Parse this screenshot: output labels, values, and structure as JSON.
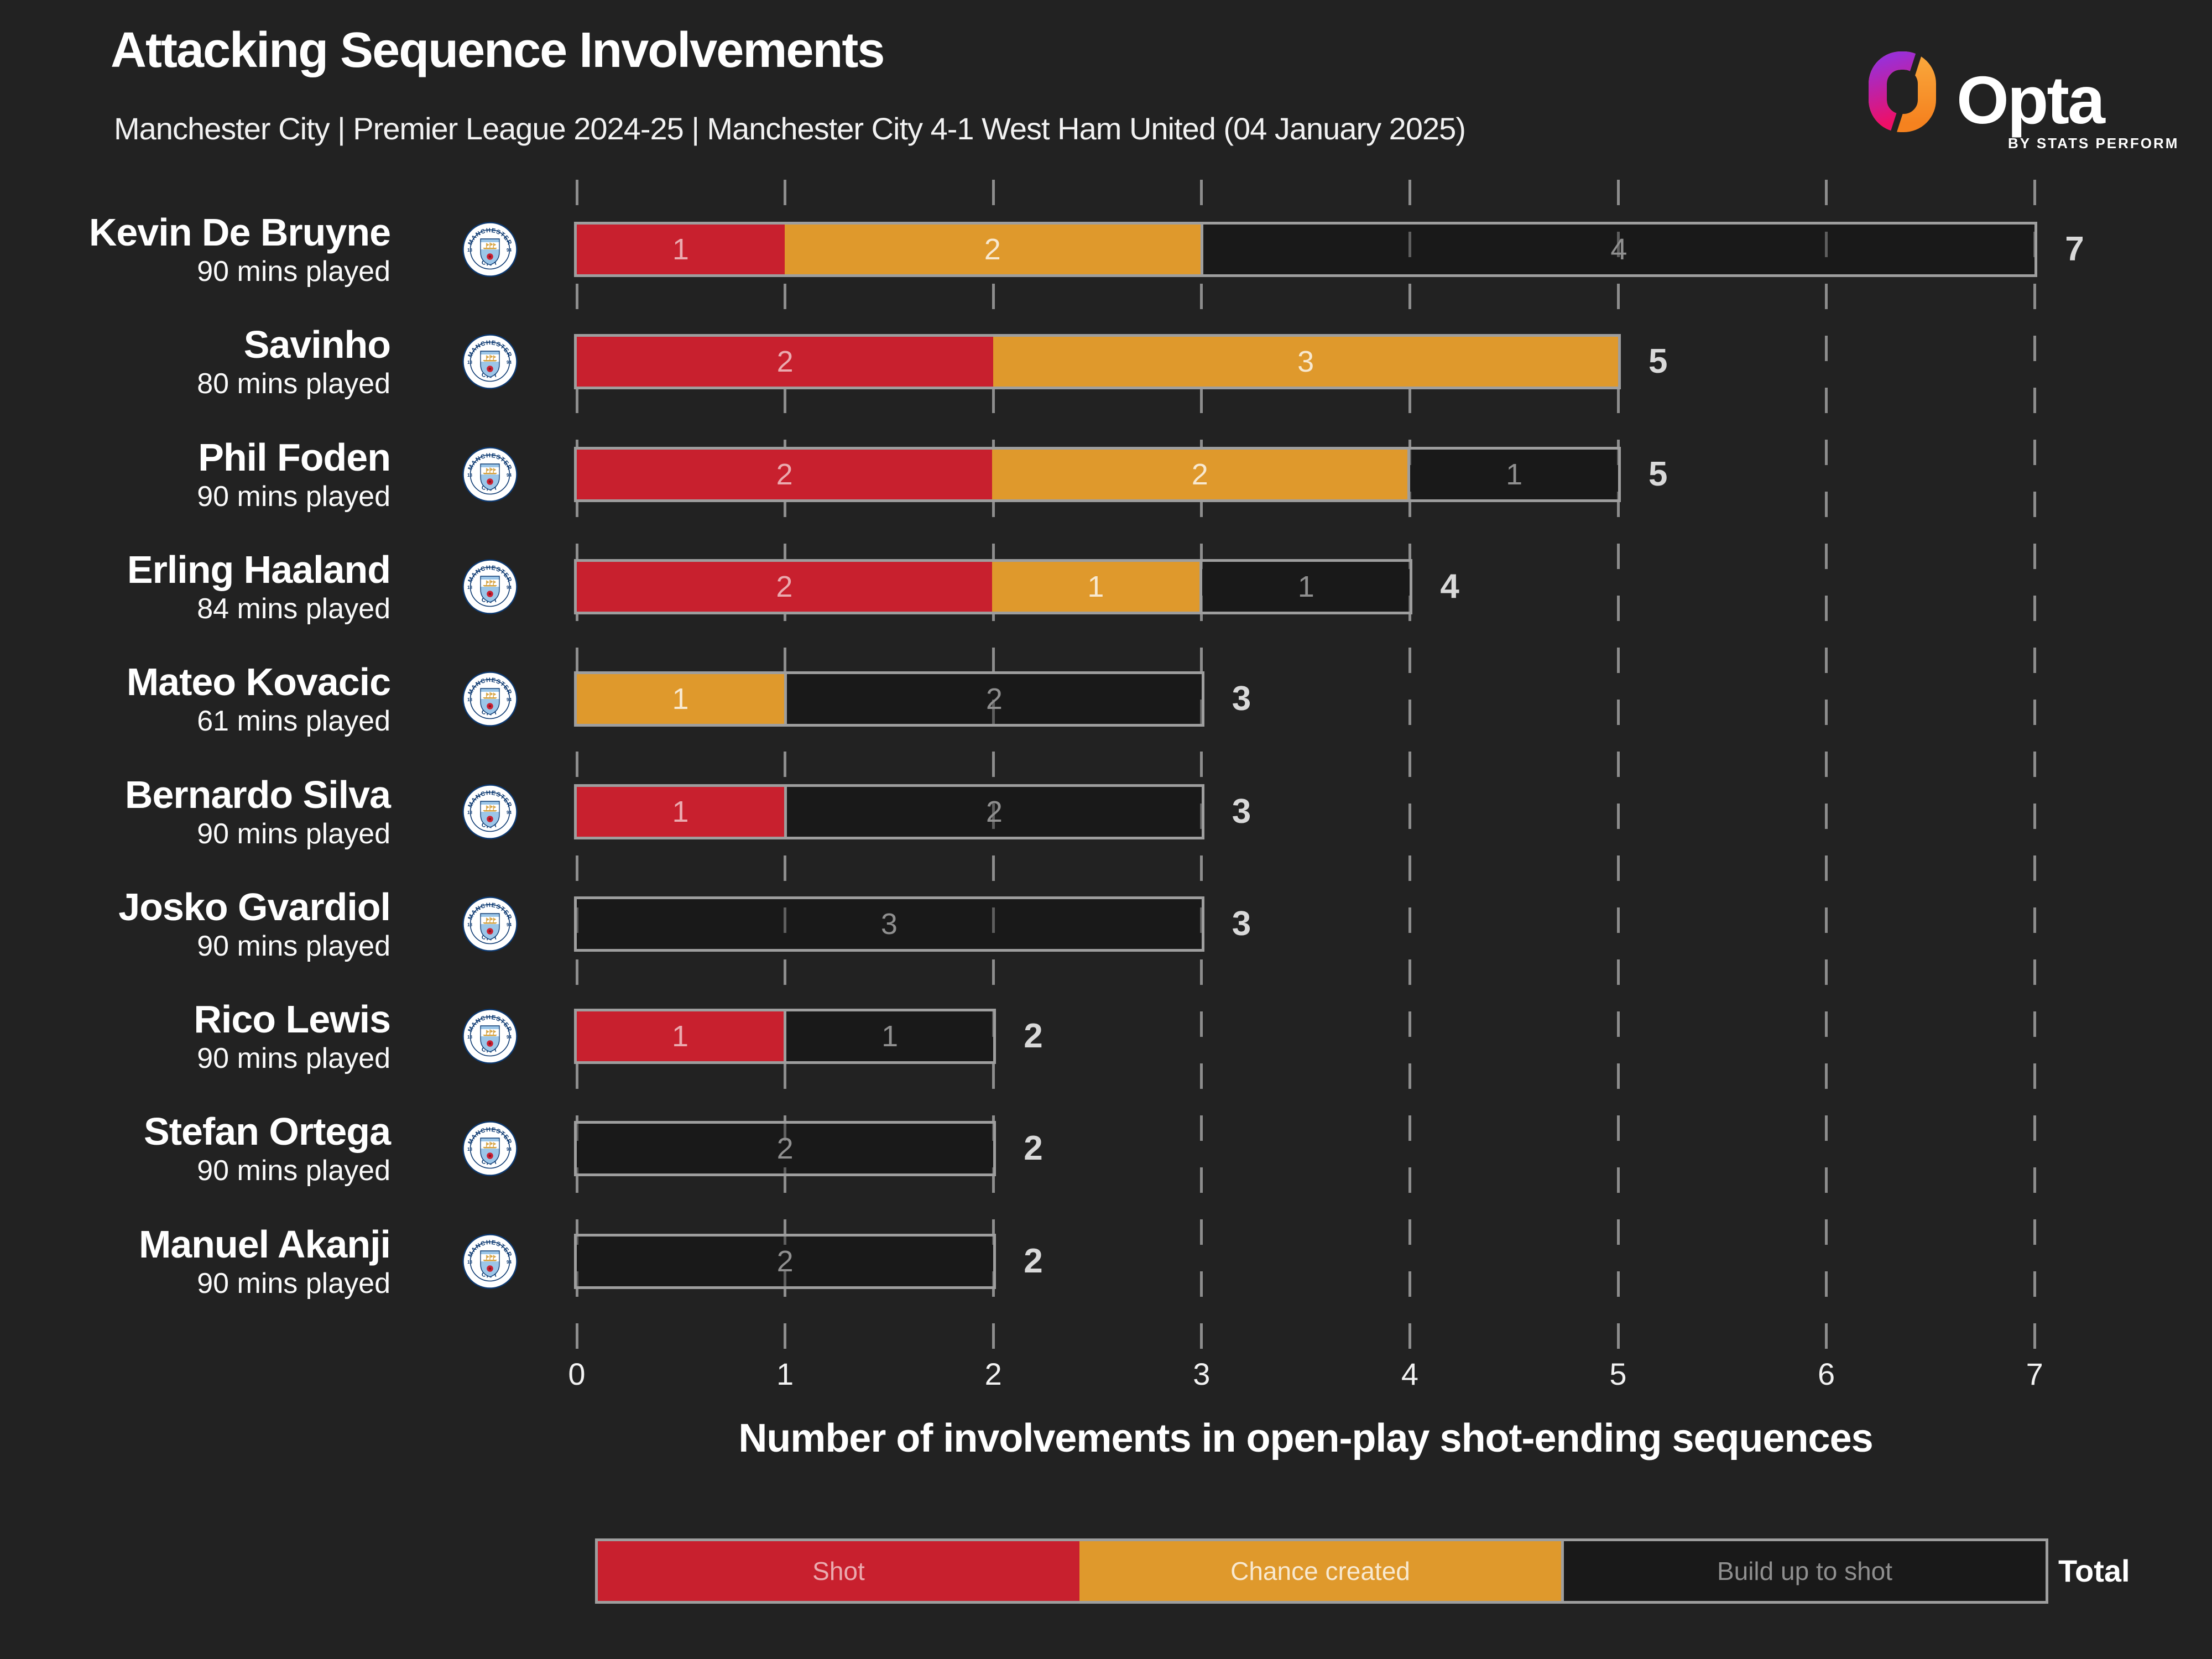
{
  "header": {
    "logo": {
      "brand": "Opta",
      "byline": "BY STATS PERFORM",
      "icon": "opta-ring-icon"
    }
  },
  "chart_data": {
    "type": "bar",
    "orientation": "horizontal",
    "stacked": true,
    "title": "Attacking Sequence Involvements",
    "subtitle": "Manchester City | Premier League 2024-25 | Manchester City 4-1 West Ham United (04 January 2025)",
    "xlabel": "Number of involvements in open-play shot-ending sequences",
    "xlim": [
      0,
      7
    ],
    "xticks": [
      0,
      1,
      2,
      3,
      4,
      5,
      6,
      7
    ],
    "grid": "dashed-vertical",
    "legend_position": "bottom",
    "total_label": "Total",
    "team_badge": "Manchester City crest",
    "categories": [
      "Kevin De Bruyne",
      "Savinho",
      "Phil Foden",
      "Erling Haaland",
      "Mateo Kovacic",
      "Bernardo Silva",
      "Josko Gvardiol",
      "Rico Lewis",
      "Stefan Ortega",
      "Manuel Akanji"
    ],
    "minutes": [
      "90 mins played",
      "80 mins played",
      "90 mins played",
      "84 mins played",
      "61 mins played",
      "90 mins played",
      "90 mins played",
      "90 mins played",
      "90 mins played",
      "90 mins played"
    ],
    "series": [
      {
        "name": "Shot",
        "style": "solid",
        "color": "#c8202e",
        "values": [
          1,
          2,
          2,
          2,
          0,
          1,
          0,
          1,
          0,
          0
        ]
      },
      {
        "name": "Chance created",
        "style": "solid",
        "color": "#df992c",
        "values": [
          2,
          3,
          2,
          1,
          1,
          0,
          0,
          0,
          0,
          0
        ]
      },
      {
        "name": "Build up to shot",
        "style": "outline",
        "color": "#9e9e9e",
        "values": [
          4,
          0,
          1,
          1,
          2,
          2,
          3,
          1,
          2,
          2
        ]
      }
    ],
    "totals": [
      7,
      5,
      5,
      4,
      3,
      3,
      3,
      2,
      2,
      2
    ]
  },
  "colors": {
    "background": "#222222",
    "shot": "#c8202e",
    "chance_created": "#df992c",
    "bar_outline": "#9e9e9e",
    "gridline": "#8d8d8d",
    "text_primary": "#ffffff",
    "total_text": "#d9d9d9",
    "buildup_text": "#8f8f8f"
  }
}
